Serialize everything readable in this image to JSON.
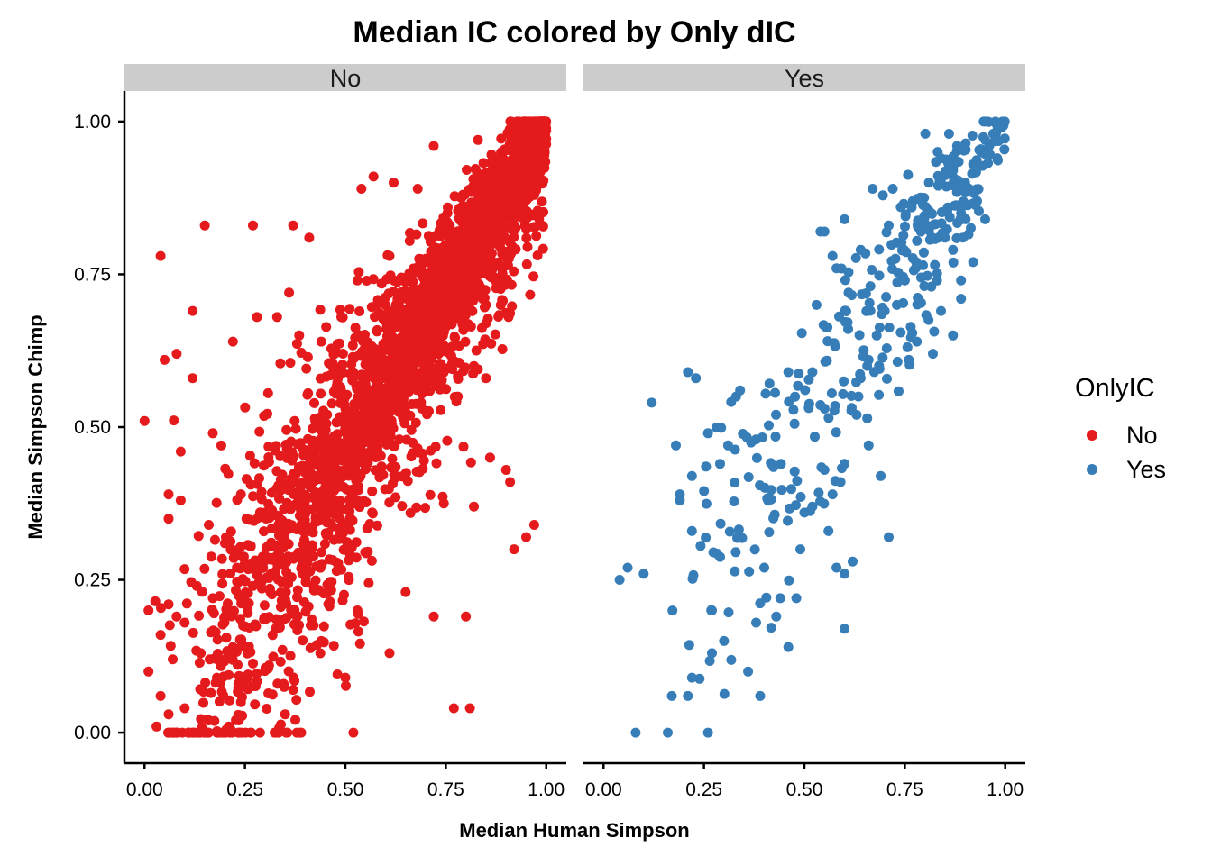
{
  "chart_data": {
    "type": "scatter",
    "title": "Median IC colored by Only dIC",
    "xlabel": "Median Human Simpson",
    "ylabel": "Median Simpson Chimp",
    "xlim": [
      -0.05,
      1.05
    ],
    "ylim": [
      -0.05,
      1.05
    ],
    "x_ticks": [
      "0.00",
      "0.25",
      "0.50",
      "0.75",
      "1.00"
    ],
    "y_ticks": [
      "0.00",
      "0.25",
      "0.50",
      "0.75",
      "1.00"
    ],
    "grid": false,
    "facet_variable": "OnlyIC",
    "panels": [
      {
        "strip_label": "No",
        "color": "#E41A1C",
        "approx_point_count": 9000,
        "pattern": "dense cloud concentrated along the diagonal y = x, densest near (1.0, 1.0), with wide scatter below and above the diagonal at low x",
        "points": [
          [
            0.04,
            0.78
          ],
          [
            0.15,
            0.83
          ],
          [
            0.27,
            0.83
          ],
          [
            0.37,
            0.83
          ],
          [
            0.41,
            0.81
          ],
          [
            0.54,
            0.89
          ],
          [
            0.57,
            0.91
          ],
          [
            0.62,
            0.9
          ],
          [
            0.68,
            0.89
          ],
          [
            0.72,
            0.96
          ],
          [
            0.83,
            0.97
          ],
          [
            0.98,
            0.96
          ],
          [
            0.12,
            0.69
          ],
          [
            0.08,
            0.62
          ],
          [
            0.05,
            0.61
          ],
          [
            0.0,
            0.51
          ],
          [
            0.09,
            0.46
          ],
          [
            0.12,
            0.58
          ],
          [
            0.17,
            0.49
          ],
          [
            0.22,
            0.64
          ],
          [
            0.28,
            0.68
          ],
          [
            0.33,
            0.68
          ],
          [
            0.36,
            0.72
          ],
          [
            0.44,
            0.64
          ],
          [
            0.53,
            0.74
          ],
          [
            0.49,
            0.68
          ],
          [
            0.6,
            0.7
          ],
          [
            0.61,
            0.78
          ],
          [
            0.7,
            0.77
          ],
          [
            0.76,
            0.83
          ],
          [
            0.89,
            0.87
          ],
          [
            0.97,
            0.88
          ],
          [
            0.06,
            0.39
          ],
          [
            0.06,
            0.35
          ],
          [
            0.09,
            0.38
          ],
          [
            0.16,
            0.34
          ],
          [
            0.2,
            0.31
          ],
          [
            0.24,
            0.39
          ],
          [
            0.3,
            0.36
          ],
          [
            0.37,
            0.45
          ],
          [
            0.43,
            0.47
          ],
          [
            0.5,
            0.53
          ],
          [
            0.55,
            0.57
          ],
          [
            0.65,
            0.66
          ],
          [
            0.69,
            0.63
          ],
          [
            0.78,
            0.74
          ],
          [
            0.82,
            0.6
          ],
          [
            0.87,
            0.82
          ],
          [
            0.93,
            0.92
          ],
          [
            0.01,
            0.2
          ],
          [
            0.04,
            0.16
          ],
          [
            0.06,
            0.21
          ],
          [
            0.1,
            0.18
          ],
          [
            0.13,
            0.24
          ],
          [
            0.17,
            0.22
          ],
          [
            0.2,
            0.19
          ],
          [
            0.23,
            0.27
          ],
          [
            0.27,
            0.24
          ],
          [
            0.33,
            0.29
          ],
          [
            0.4,
            0.34
          ],
          [
            0.45,
            0.4
          ],
          [
            0.48,
            0.43
          ],
          [
            0.57,
            0.5
          ],
          [
            0.63,
            0.55
          ],
          [
            0.72,
            0.58
          ],
          [
            0.76,
            0.62
          ],
          [
            0.85,
            0.7
          ],
          [
            0.01,
            0.1
          ],
          [
            0.04,
            0.06
          ],
          [
            0.07,
            0.12
          ],
          [
            0.1,
            0.04
          ],
          [
            0.14,
            0.13
          ],
          [
            0.18,
            0.09
          ],
          [
            0.22,
            0.14
          ],
          [
            0.24,
            0.05
          ],
          [
            0.31,
            0.11
          ],
          [
            0.37,
            0.07
          ],
          [
            0.44,
            0.15
          ],
          [
            0.5,
            0.09
          ],
          [
            0.53,
            0.2
          ],
          [
            0.61,
            0.13
          ],
          [
            0.65,
            0.23
          ],
          [
            0.72,
            0.19
          ],
          [
            0.8,
            0.19
          ],
          [
            0.82,
            0.37
          ],
          [
            0.03,
            0.01
          ],
          [
            0.06,
            0.03
          ],
          [
            0.08,
            0.0
          ],
          [
            0.16,
            0.02
          ],
          [
            0.21,
            0.01
          ],
          [
            0.35,
            0.03
          ],
          [
            0.39,
            0.0
          ],
          [
            0.52,
            0.0
          ],
          [
            0.77,
            0.04
          ],
          [
            0.81,
            0.04
          ],
          [
            0.86,
            0.45
          ],
          [
            0.9,
            0.43
          ],
          [
            0.91,
            0.41
          ],
          [
            0.97,
            0.34
          ],
          [
            0.95,
            0.32
          ],
          [
            0.92,
            0.3
          ],
          [
            0.86,
            0.45
          ],
          [
            0.78,
            0.55
          ],
          [
            0.85,
            0.58
          ]
        ]
      },
      {
        "strip_label": "Yes",
        "color": "#377EB8",
        "approx_point_count": 430,
        "pattern": "sparser cloud along the diagonal, densest near (0.9, 0.9)",
        "points": [
          [
            0.04,
            0.25
          ],
          [
            0.06,
            0.27
          ],
          [
            0.1,
            0.26
          ],
          [
            0.08,
            0.0
          ],
          [
            0.16,
            0.0
          ],
          [
            0.26,
            0.0
          ],
          [
            0.17,
            0.06
          ],
          [
            0.21,
            0.06
          ],
          [
            0.22,
            0.09
          ],
          [
            0.12,
            0.54
          ],
          [
            0.18,
            0.47
          ],
          [
            0.19,
            0.38
          ],
          [
            0.19,
            0.39
          ],
          [
            0.22,
            0.33
          ],
          [
            0.21,
            0.59
          ],
          [
            0.22,
            0.42
          ],
          [
            0.23,
            0.58
          ],
          [
            0.26,
            0.49
          ],
          [
            0.29,
            0.44
          ],
          [
            0.31,
            0.47
          ],
          [
            0.33,
            0.55
          ],
          [
            0.34,
            0.56
          ],
          [
            0.38,
            0.48
          ],
          [
            0.46,
            0.59
          ],
          [
            0.43,
            0.19
          ],
          [
            0.4,
            0.27
          ],
          [
            0.38,
            0.18
          ],
          [
            0.27,
            0.2
          ],
          [
            0.27,
            0.13
          ],
          [
            0.3,
            0.15
          ],
          [
            0.36,
            0.1
          ],
          [
            0.39,
            0.06
          ],
          [
            0.44,
            0.22
          ],
          [
            0.46,
            0.14
          ],
          [
            0.48,
            0.22
          ],
          [
            0.49,
            0.3
          ],
          [
            0.5,
            0.36
          ],
          [
            0.52,
            0.37
          ],
          [
            0.56,
            0.33
          ],
          [
            0.58,
            0.27
          ],
          [
            0.6,
            0.17
          ],
          [
            0.6,
            0.26
          ],
          [
            0.62,
            0.28
          ],
          [
            0.66,
            0.47
          ],
          [
            0.69,
            0.42
          ],
          [
            0.71,
            0.32
          ],
          [
            0.55,
            0.43
          ],
          [
            0.57,
            0.39
          ],
          [
            0.59,
            0.41
          ],
          [
            0.6,
            0.44
          ],
          [
            0.63,
            0.52
          ],
          [
            0.64,
            0.58
          ],
          [
            0.66,
            0.61
          ],
          [
            0.68,
            0.65
          ],
          [
            0.7,
            0.69
          ],
          [
            0.73,
            0.7
          ],
          [
            0.75,
            0.74
          ],
          [
            0.76,
            0.61
          ],
          [
            0.78,
            0.64
          ],
          [
            0.82,
            0.62
          ],
          [
            0.84,
            0.69
          ],
          [
            0.87,
            0.65
          ],
          [
            0.89,
            0.74
          ],
          [
            0.52,
            0.59
          ],
          [
            0.53,
            0.7
          ],
          [
            0.54,
            0.82
          ],
          [
            0.55,
            0.82
          ],
          [
            0.57,
            0.78
          ],
          [
            0.58,
            0.76
          ],
          [
            0.61,
            0.72
          ],
          [
            0.64,
            0.79
          ],
          [
            0.6,
            0.84
          ],
          [
            0.67,
            0.89
          ],
          [
            0.71,
            0.83
          ],
          [
            0.72,
            0.89
          ],
          [
            0.74,
            0.86
          ],
          [
            0.77,
            0.87
          ],
          [
            0.79,
            0.82
          ],
          [
            0.81,
            0.9
          ],
          [
            0.84,
            0.94
          ],
          [
            0.87,
            0.92
          ],
          [
            0.85,
            0.81
          ],
          [
            0.87,
            0.79
          ],
          [
            0.89,
            0.85
          ],
          [
            0.9,
            0.9
          ],
          [
            0.92,
            0.93
          ],
          [
            0.94,
            0.95
          ],
          [
            0.95,
            0.97
          ],
          [
            0.96,
            0.96
          ],
          [
            0.97,
            0.98
          ],
          [
            0.98,
            0.94
          ],
          [
            0.99,
            0.99
          ],
          [
            0.93,
            0.87
          ],
          [
            0.91,
            0.89
          ],
          [
            0.88,
            0.96
          ],
          [
            0.86,
            0.98
          ],
          [
            0.95,
            0.84
          ],
          [
            0.92,
            0.77
          ],
          [
            0.89,
            0.71
          ]
        ]
      }
    ],
    "legend": {
      "title": "OnlyIC",
      "position": "right",
      "entries": [
        {
          "label": "No",
          "color": "#E41A1C"
        },
        {
          "label": "Yes",
          "color": "#377EB8"
        }
      ]
    }
  }
}
